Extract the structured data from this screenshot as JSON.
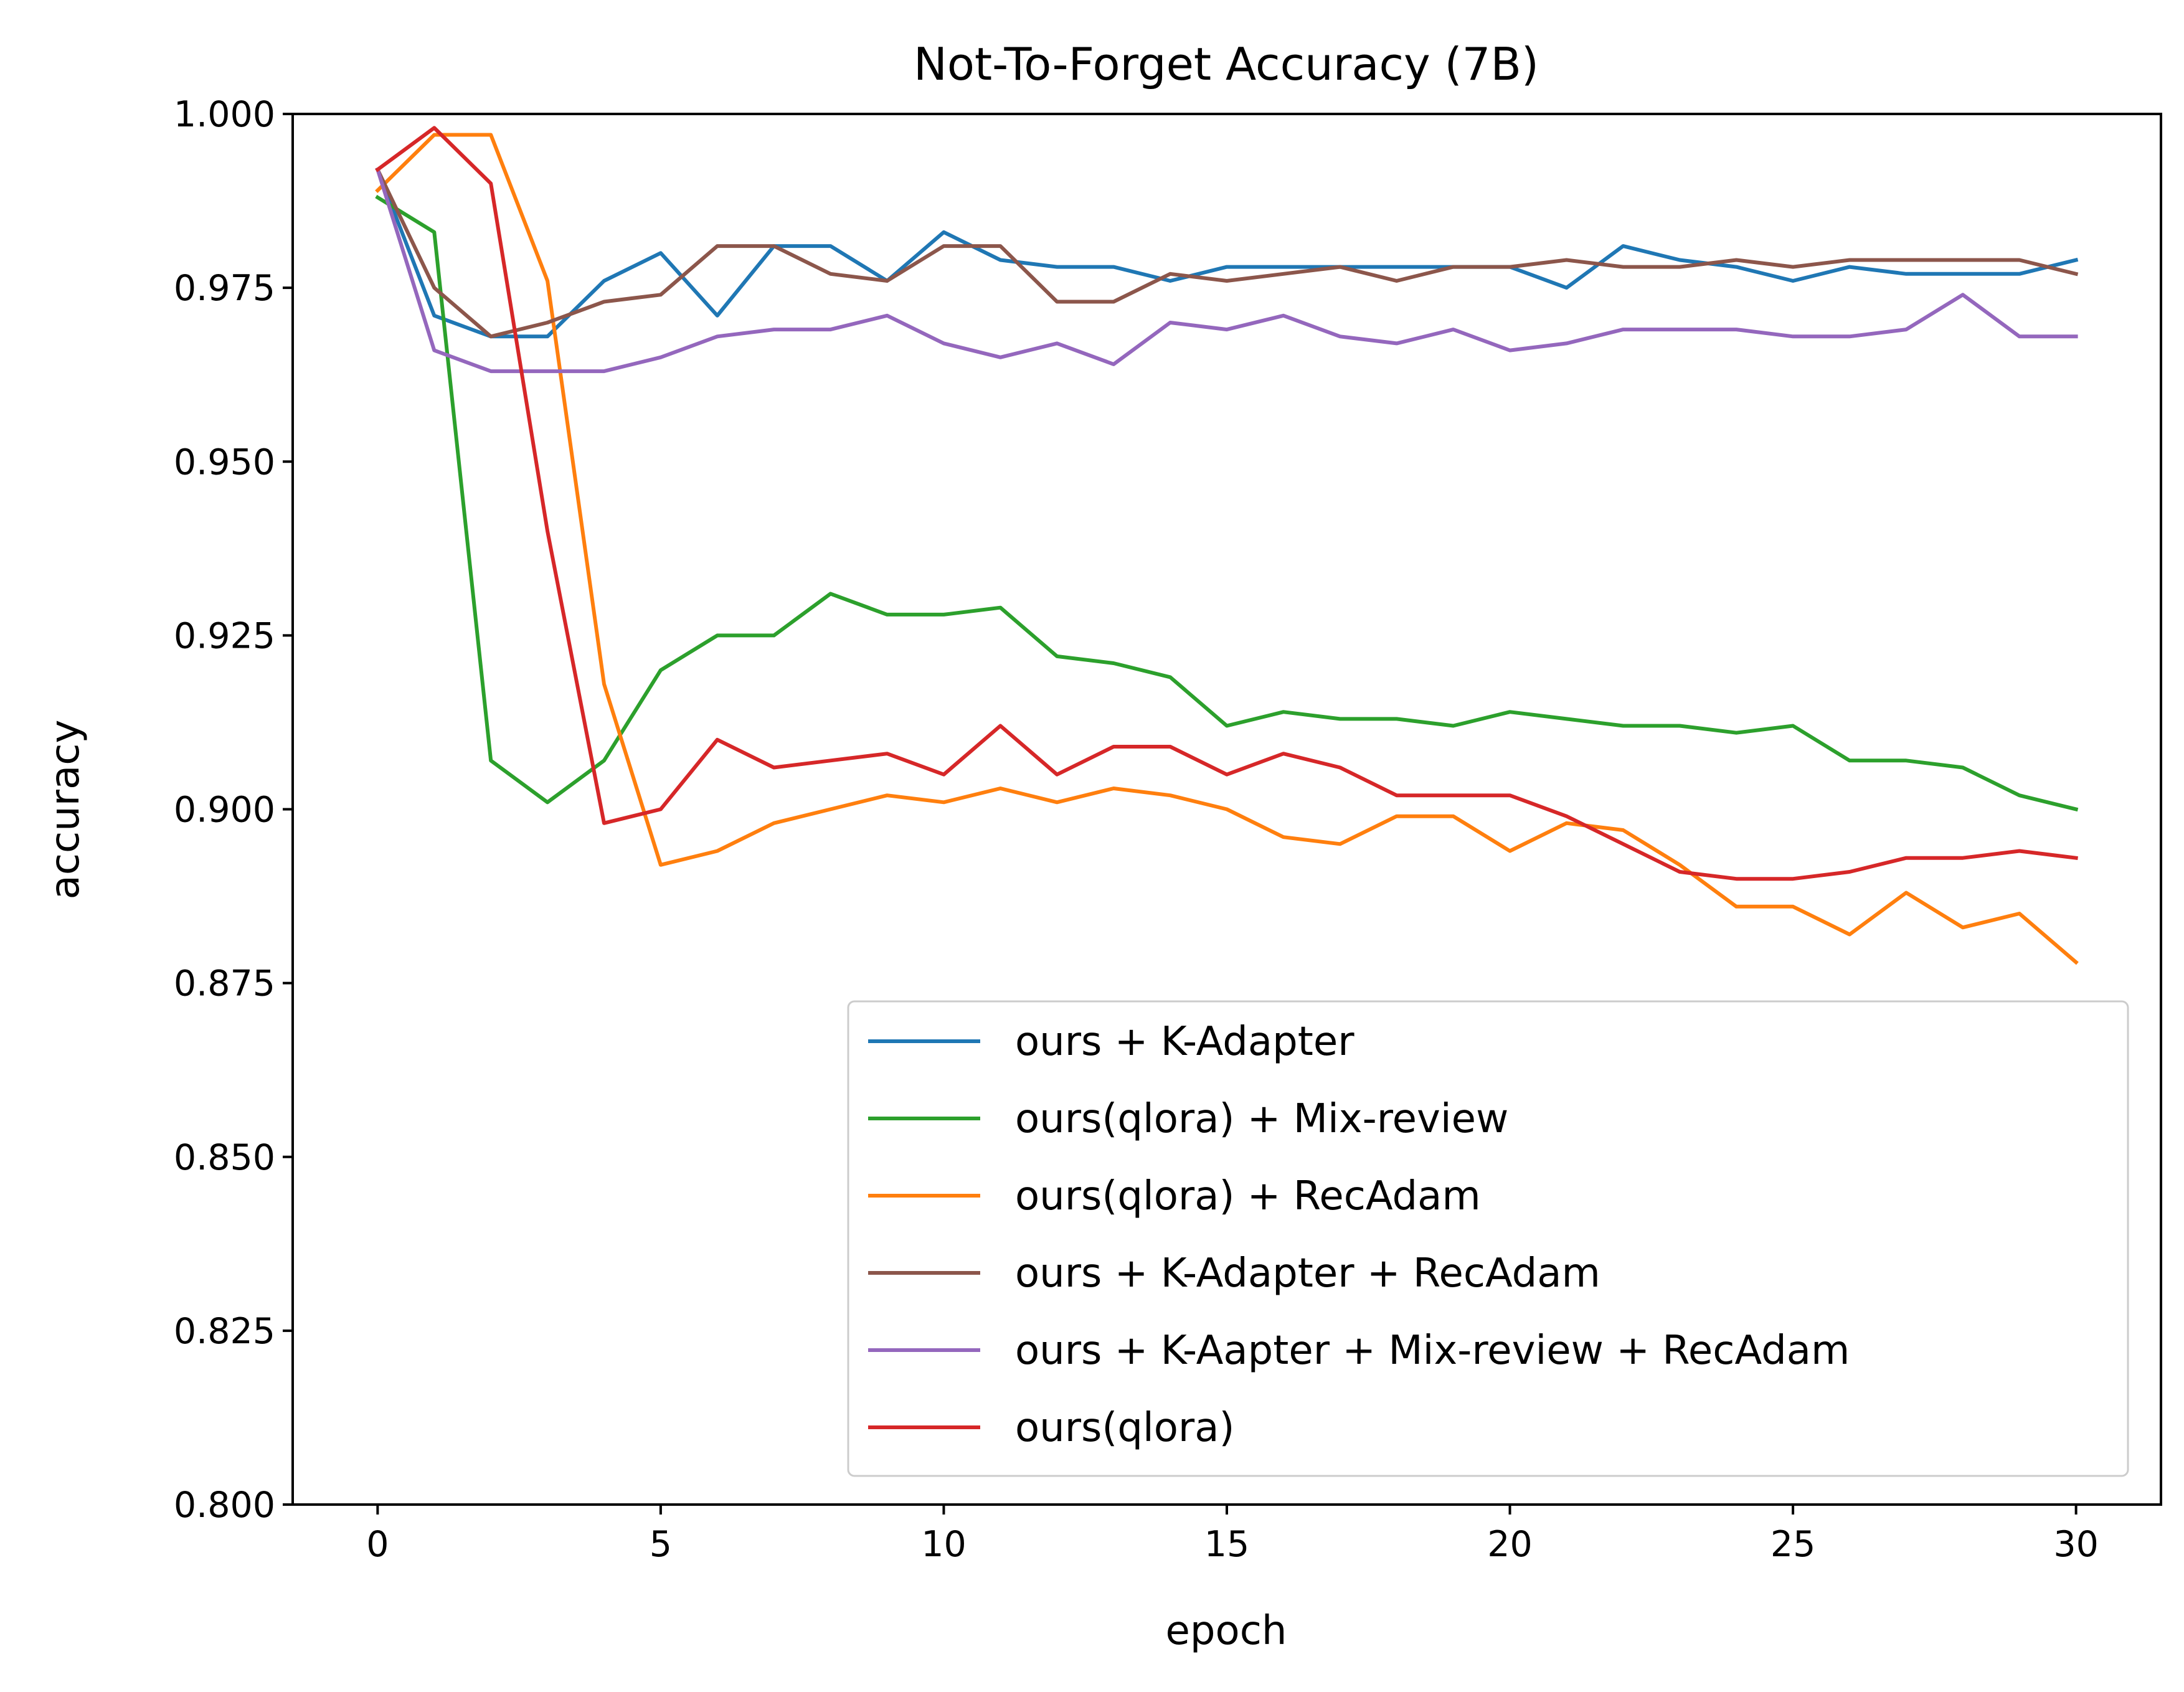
{
  "chart_data": {
    "type": "line",
    "title": "Not-To-Forget Accuracy (7B)",
    "xlabel": "epoch",
    "ylabel": "accuracy",
    "xlim": [
      -1.5,
      31.5
    ],
    "ylim": [
      0.8,
      1.0
    ],
    "x_ticks": [
      0,
      5,
      10,
      15,
      20,
      25,
      30
    ],
    "x_tick_labels": [
      "0",
      "5",
      "10",
      "15",
      "20",
      "25",
      "30"
    ],
    "y_ticks": [
      0.8,
      0.825,
      0.85,
      0.875,
      0.9,
      0.925,
      0.95,
      0.975,
      1.0
    ],
    "y_tick_labels": [
      "0.800",
      "0.825",
      "0.850",
      "0.875",
      "0.900",
      "0.925",
      "0.950",
      "0.975",
      "1.000"
    ],
    "grid": false,
    "legend_position": "lower-right",
    "x": [
      0,
      1,
      2,
      3,
      4,
      5,
      6,
      7,
      8,
      9,
      10,
      11,
      12,
      13,
      14,
      15,
      16,
      17,
      18,
      19,
      20,
      21,
      22,
      23,
      24,
      25,
      26,
      27,
      28,
      29,
      30
    ],
    "series": [
      {
        "name": "ours + K-Adapter",
        "color": "#1f77b4",
        "values": [
          0.992,
          0.971,
          0.968,
          0.968,
          0.976,
          0.98,
          0.971,
          0.981,
          0.981,
          0.976,
          0.983,
          0.979,
          0.978,
          0.978,
          0.976,
          0.978,
          0.978,
          0.978,
          0.978,
          0.978,
          0.978,
          0.975,
          0.981,
          0.979,
          0.978,
          0.976,
          0.978,
          0.977,
          0.977,
          0.977,
          0.979
        ]
      },
      {
        "name": "ours(qlora) + Mix-review",
        "color": "#2ca02c",
        "values": [
          0.988,
          0.983,
          0.907,
          0.901,
          0.907,
          0.92,
          0.925,
          0.925,
          0.931,
          0.928,
          0.928,
          0.929,
          0.922,
          0.921,
          0.919,
          0.912,
          0.914,
          0.913,
          0.913,
          0.912,
          0.914,
          0.913,
          0.912,
          0.912,
          0.911,
          0.912,
          0.907,
          0.907,
          0.906,
          0.902,
          0.9
        ]
      },
      {
        "name": "ours(qlora) + RecAdam",
        "color": "#ff7f0e",
        "values": [
          0.989,
          0.997,
          0.997,
          0.976,
          0.918,
          0.892,
          0.894,
          0.898,
          0.9,
          0.902,
          0.901,
          0.903,
          0.901,
          0.903,
          0.902,
          0.9,
          0.896,
          0.895,
          0.899,
          0.899,
          0.894,
          0.898,
          0.897,
          0.892,
          0.886,
          0.886,
          0.882,
          0.888,
          0.883,
          0.885,
          0.878
        ]
      },
      {
        "name": "ours + K-Adapter + RecAdam",
        "color": "#8c564b",
        "values": [
          0.992,
          0.975,
          0.968,
          0.97,
          0.973,
          0.974,
          0.981,
          0.981,
          0.977,
          0.976,
          0.981,
          0.981,
          0.973,
          0.973,
          0.977,
          0.976,
          0.977,
          0.978,
          0.976,
          0.978,
          0.978,
          0.979,
          0.978,
          0.978,
          0.979,
          0.978,
          0.979,
          0.979,
          0.979,
          0.979,
          0.977
        ]
      },
      {
        "name": "ours + K-Aapter + Mix-review + RecAdam",
        "color": "#9467bd",
        "values": [
          0.992,
          0.966,
          0.963,
          0.963,
          0.963,
          0.965,
          0.968,
          0.969,
          0.969,
          0.971,
          0.967,
          0.965,
          0.967,
          0.964,
          0.97,
          0.969,
          0.971,
          0.968,
          0.967,
          0.969,
          0.966,
          0.967,
          0.969,
          0.969,
          0.969,
          0.968,
          0.968,
          0.969,
          0.974,
          0.968,
          0.968
        ]
      },
      {
        "name": "ours(qlora)",
        "color": "#d62728",
        "values": [
          0.992,
          0.998,
          0.99,
          0.94,
          0.898,
          0.9,
          0.91,
          0.906,
          0.907,
          0.908,
          0.905,
          0.912,
          0.905,
          0.909,
          0.909,
          0.905,
          0.908,
          0.906,
          0.902,
          0.902,
          0.902,
          0.899,
          0.895,
          0.891,
          0.89,
          0.89,
          0.891,
          0.893,
          0.893,
          0.894,
          0.893
        ]
      }
    ]
  }
}
